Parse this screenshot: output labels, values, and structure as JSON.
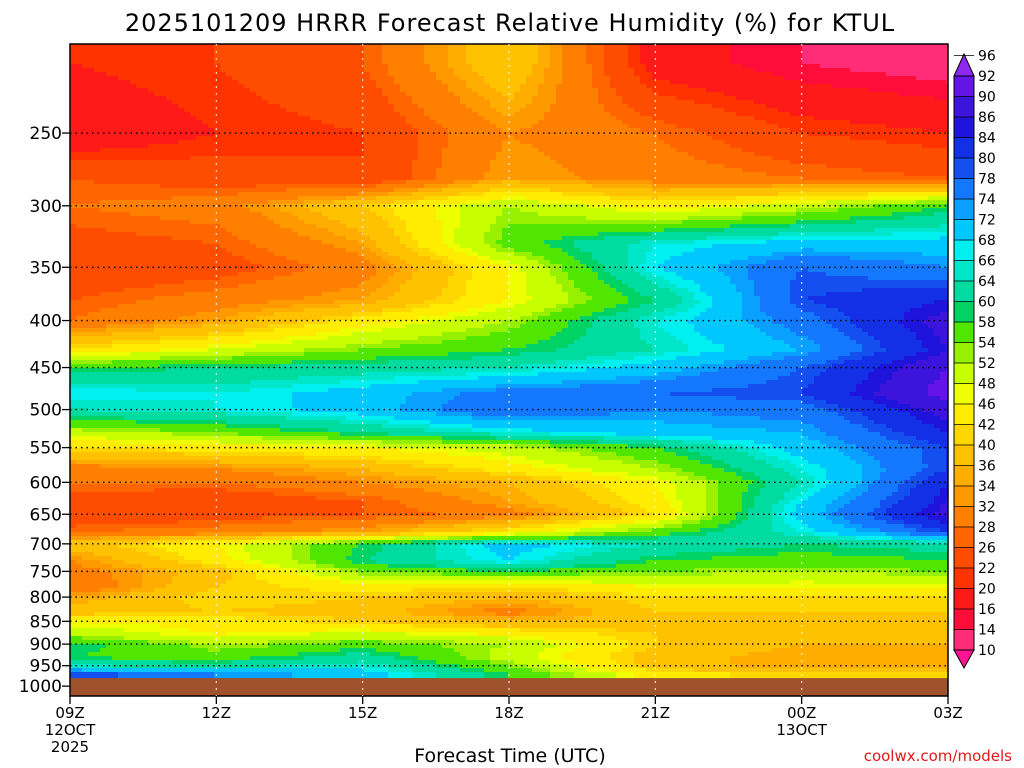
{
  "chart_data": {
    "type": "heatmap",
    "title": "2025101209 HRRR Forecast Relative Humidity (%) for KTUL",
    "xlabel": "Forecast Time (UTC)",
    "ylabel": "",
    "x_ticks": [
      {
        "label": "09Z",
        "sub": [
          "12OCT",
          "2025"
        ]
      },
      {
        "label": "12Z",
        "sub": []
      },
      {
        "label": "15Z",
        "sub": []
      },
      {
        "label": "18Z",
        "sub": []
      },
      {
        "label": "21Z",
        "sub": []
      },
      {
        "label": "00Z",
        "sub": [
          "13OCT"
        ]
      },
      {
        "label": "03Z",
        "sub": []
      }
    ],
    "x_hours": [
      0,
      3,
      6,
      9,
      12,
      15,
      18
    ],
    "pressure_levels": [
      250,
      300,
      350,
      400,
      450,
      500,
      550,
      600,
      650,
      700,
      750,
      800,
      850,
      900,
      950,
      1000
    ],
    "ylim": [
      200,
      1025
    ],
    "y_reversed": true,
    "ground_level_hpa": 980,
    "ground_color": "#a0522d",
    "colorbar": {
      "levels": [
        10,
        14,
        16,
        20,
        22,
        26,
        28,
        32,
        34,
        36,
        40,
        42,
        46,
        48,
        52,
        54,
        58,
        60,
        64,
        66,
        68,
        72,
        74,
        78,
        80,
        84,
        86,
        90,
        92,
        96
      ],
      "colors": [
        "#ff1493",
        "#ff2d78",
        "#ff0d3a",
        "#ff1a1a",
        "#ff3300",
        "#ff4d00",
        "#ff6600",
        "#ff8000",
        "#ff9900",
        "#ffad00",
        "#ffc200",
        "#ffd700",
        "#ffec00",
        "#f0ff00",
        "#c8ff00",
        "#96f000",
        "#50e600",
        "#00d264",
        "#00dca0",
        "#00e6c8",
        "#00f0f0",
        "#00c8ff",
        "#0aa0ff",
        "#1478ff",
        "#1450f0",
        "#1430e6",
        "#1e14dc",
        "#3c14dc",
        "#6414e6",
        "#8c28f0"
      ],
      "extend": "both"
    },
    "grid": true,
    "rh_grid": {
      "columns_hours": [
        0,
        3,
        6,
        9,
        12,
        15,
        18
      ],
      "rows_hpa": [
        210,
        250,
        280,
        300,
        330,
        350,
        380,
        400,
        430,
        450,
        480,
        500,
        530,
        550,
        580,
        600,
        630,
        650,
        680,
        700,
        730,
        750,
        780,
        800,
        830,
        850,
        880,
        900,
        930,
        950,
        970
      ],
      "values": [
        [
          20,
          22,
          26,
          40,
          18,
          14,
          12
        ],
        [
          16,
          20,
          22,
          32,
          28,
          22,
          20
        ],
        [
          26,
          24,
          22,
          34,
          30,
          28,
          26
        ],
        [
          28,
          30,
          40,
          52,
          44,
          50,
          58
        ],
        [
          24,
          26,
          34,
          56,
          66,
          70,
          70
        ],
        [
          22,
          24,
          30,
          46,
          68,
          78,
          74
        ],
        [
          26,
          30,
          34,
          46,
          60,
          80,
          84
        ],
        [
          28,
          34,
          44,
          52,
          66,
          76,
          88
        ],
        [
          42,
          48,
          54,
          58,
          64,
          72,
          86
        ],
        [
          58,
          60,
          62,
          64,
          70,
          78,
          90
        ],
        [
          68,
          66,
          70,
          76,
          78,
          80,
          92
        ],
        [
          64,
          66,
          70,
          78,
          74,
          76,
          88
        ],
        [
          50,
          54,
          60,
          66,
          70,
          72,
          84
        ],
        [
          42,
          44,
          46,
          50,
          58,
          70,
          80
        ],
        [
          30,
          32,
          36,
          44,
          52,
          66,
          80
        ],
        [
          28,
          28,
          32,
          36,
          46,
          64,
          84
        ],
        [
          24,
          22,
          26,
          34,
          44,
          68,
          86
        ],
        [
          22,
          24,
          26,
          30,
          42,
          70,
          88
        ],
        [
          28,
          30,
          34,
          44,
          56,
          66,
          80
        ],
        [
          38,
          46,
          58,
          70,
          64,
          60,
          62
        ],
        [
          32,
          44,
          60,
          68,
          58,
          56,
          58
        ],
        [
          30,
          38,
          54,
          58,
          54,
          52,
          54
        ],
        [
          28,
          40,
          44,
          42,
          46,
          46,
          46
        ],
        [
          34,
          42,
          40,
          36,
          42,
          42,
          42
        ],
        [
          38,
          40,
          38,
          30,
          40,
          40,
          40
        ],
        [
          46,
          44,
          40,
          36,
          38,
          38,
          40
        ],
        [
          52,
          46,
          50,
          46,
          40,
          38,
          38
        ],
        [
          60,
          52,
          56,
          52,
          40,
          36,
          36
        ],
        [
          58,
          56,
          62,
          50,
          38,
          34,
          34
        ],
        [
          64,
          62,
          66,
          54,
          38,
          34,
          34
        ],
        [
          80,
          74,
          70,
          58,
          44,
          40,
          40
        ]
      ]
    },
    "credit": "coolwx.com/models"
  }
}
